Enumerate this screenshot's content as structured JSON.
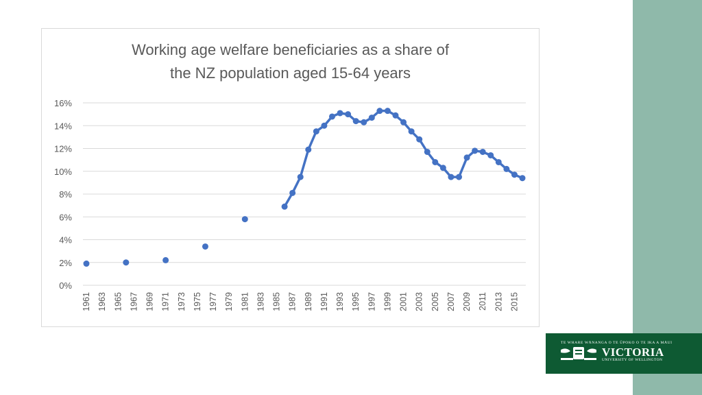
{
  "slide": {
    "accent_color": "#8fb9aa"
  },
  "logo": {
    "tagline": "TE WHARE WĀNANGA O TE ŪPOKO O TE IKA A MĀUI",
    "name": "VICTORIA",
    "subtitle": "UNIVERSITY OF WELLINGTON",
    "background_color": "#0e5a33",
    "icon": "crest-icon"
  },
  "chart_data": {
    "type": "line",
    "title_line1": "Working age welfare beneficiaries as a share of",
    "title_line2": "the NZ population aged 15-64 years",
    "xlabel": "",
    "ylabel": "",
    "x_tick_labels": [
      "1961",
      "1963",
      "1965",
      "1967",
      "1969",
      "1971",
      "1973",
      "1975",
      "1977",
      "1979",
      "1981",
      "1983",
      "1985",
      "1987",
      "1989",
      "1991",
      "1993",
      "1995",
      "1997",
      "1999",
      "2001",
      "2003",
      "2005",
      "2007",
      "2009",
      "2011",
      "2013",
      "2015"
    ],
    "y_tick_labels": [
      "0%",
      "2%",
      "4%",
      "6%",
      "8%",
      "10%",
      "12%",
      "14%",
      "16%"
    ],
    "ylim": [
      0,
      16
    ],
    "xlim": [
      1961,
      2016
    ],
    "grid": true,
    "line_color": "#4472c4",
    "series": [
      {
        "points": [
          [
            1961,
            1.9
          ],
          [
            1966,
            2.0
          ],
          [
            1971,
            2.2
          ],
          [
            1976,
            3.4
          ],
          [
            1981,
            5.8
          ],
          [
            1986,
            6.9
          ],
          [
            1987,
            8.1
          ],
          [
            1988,
            9.5
          ],
          [
            1989,
            11.9
          ],
          [
            1990,
            13.5
          ],
          [
            1991,
            14.0
          ],
          [
            1992,
            14.8
          ],
          [
            1993,
            15.1
          ],
          [
            1994,
            15.0
          ],
          [
            1995,
            14.4
          ],
          [
            1996,
            14.3
          ],
          [
            1997,
            14.7
          ],
          [
            1998,
            15.3
          ],
          [
            1999,
            15.3
          ],
          [
            2000,
            14.9
          ],
          [
            2001,
            14.3
          ],
          [
            2002,
            13.5
          ],
          [
            2003,
            12.8
          ],
          [
            2004,
            11.7
          ],
          [
            2005,
            10.8
          ],
          [
            2006,
            10.3
          ],
          [
            2007,
            9.5
          ],
          [
            2008,
            9.5
          ],
          [
            2009,
            11.2
          ],
          [
            2010,
            11.8
          ],
          [
            2011,
            11.7
          ],
          [
            2012,
            11.4
          ],
          [
            2013,
            10.8
          ],
          [
            2014,
            10.2
          ],
          [
            2015,
            9.7
          ],
          [
            2016,
            9.4
          ]
        ],
        "connected_from": 1986
      }
    ]
  }
}
